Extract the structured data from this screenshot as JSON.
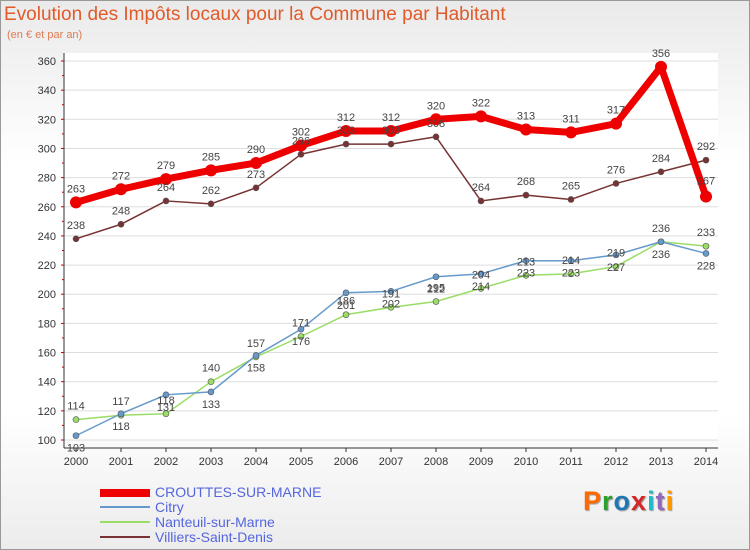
{
  "chart_data": {
    "type": "line",
    "title": "Evolution des Impôts locaux pour la Commune par Habitant",
    "subtitle": "(en € et par an)",
    "xlabel": "",
    "ylabel": "",
    "categories": [
      "2000",
      "2001",
      "2002",
      "2003",
      "2004",
      "2005",
      "2006",
      "2007",
      "2008",
      "2009",
      "2010",
      "2011",
      "2012",
      "2013",
      "2014"
    ],
    "ylim": [
      100,
      360
    ],
    "yticks": [
      100,
      120,
      140,
      160,
      180,
      200,
      220,
      240,
      260,
      280,
      300,
      320,
      340,
      360
    ],
    "grid": true,
    "legend_position": "bottom-left",
    "series": [
      {
        "name": "CROUTTES-SUR-MARNE",
        "color": "#ee0000",
        "values": [
          263,
          272,
          279,
          285,
          290,
          302,
          312,
          312,
          320,
          322,
          313,
          311,
          317,
          356,
          267
        ]
      },
      {
        "name": "Citry",
        "color": "#6699cc",
        "values": [
          103,
          118,
          131,
          133,
          158,
          176,
          201,
          202,
          212,
          214,
          223,
          223,
          227,
          236,
          228
        ]
      },
      {
        "name": "Nanteuil-sur-Marne",
        "color": "#99dd66",
        "values": [
          114,
          117,
          118,
          140,
          157,
          171,
          186,
          191,
          195,
          204,
          213,
          214,
          219,
          236,
          233
        ]
      },
      {
        "name": "Villiers-Saint-Denis",
        "color": "#773333",
        "values": [
          238,
          248,
          264,
          262,
          273,
          296,
          303,
          303,
          308,
          264,
          268,
          265,
          276,
          284,
          292
        ]
      }
    ]
  },
  "logo": {
    "text": "Proxiti",
    "colors": [
      "#ff6a00",
      "#2ca02c",
      "#1f77b4",
      "#d62728",
      "#17becf",
      "#9467bd",
      "#ff9900"
    ]
  }
}
